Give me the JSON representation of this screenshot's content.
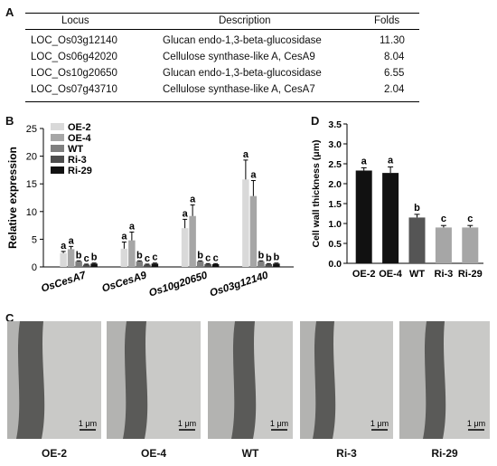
{
  "panel_a": {
    "letter": "A",
    "headers": {
      "locus": "Locus",
      "description": "Description",
      "folds": "Folds"
    },
    "rows": [
      {
        "locus": "LOC_Os03g12140",
        "description": "Glucan endo-1,3-beta-glucosidase",
        "folds": "11.30"
      },
      {
        "locus": "LOC_Os06g42020",
        "description": "Cellulose synthase-like A, CesA9",
        "folds": "8.04"
      },
      {
        "locus": "LOC_Os10g20650",
        "description": "Glucan endo-1,3-beta-glucosidase",
        "folds": "6.55"
      },
      {
        "locus": "LOC_Os07g43710",
        "description": "Cellulose synthase-like A, CesA7",
        "folds": "2.04"
      }
    ]
  },
  "panel_b": {
    "letter": "B",
    "chart_data": {
      "type": "bar",
      "ylabel": "Relative expression",
      "ylim": [
        0,
        25
      ],
      "yticks": [
        0,
        5,
        10,
        15,
        20,
        25
      ],
      "categories": [
        "OsCesA7",
        "OsCesA9",
        "Os10g20650",
        "Os03g12140"
      ],
      "series": [
        {
          "name": "OE-2",
          "color": "#d9d9d9",
          "values": [
            2.5,
            3.3,
            7.0,
            15.8
          ],
          "errors": [
            0.3,
            1.2,
            1.6,
            3.5
          ],
          "letters": [
            "a",
            "a",
            "a",
            "a"
          ]
        },
        {
          "name": "OE-4",
          "color": "#a6a6a6",
          "values": [
            3.2,
            4.8,
            9.2,
            12.8
          ],
          "errors": [
            0.5,
            1.5,
            2.0,
            2.8
          ],
          "letters": [
            "a",
            "a",
            "a",
            "a"
          ]
        },
        {
          "name": "WT",
          "color": "#7f7f7f",
          "values": [
            1.0,
            1.0,
            1.0,
            1.0
          ],
          "errors": [
            0.1,
            0.1,
            0.1,
            0.1
          ],
          "letters": [
            "b",
            "b",
            "b",
            "b"
          ]
        },
        {
          "name": "Ri-3",
          "color": "#4d4d4d",
          "values": [
            0.4,
            0.4,
            0.5,
            0.5
          ],
          "errors": [
            0.1,
            0.1,
            0.1,
            0.1
          ],
          "letters": [
            "c",
            "c",
            "c",
            "b"
          ]
        },
        {
          "name": "Ri-29",
          "color": "#111111",
          "values": [
            0.6,
            0.6,
            0.5,
            0.6
          ],
          "errors": [
            0.1,
            0.1,
            0.1,
            0.1
          ],
          "letters": [
            "b",
            "c",
            "c",
            "b"
          ]
        }
      ]
    }
  },
  "panel_d": {
    "letter": "D",
    "chart_data": {
      "type": "bar",
      "ylabel": "Cell wall thickness (μm)",
      "ylim": [
        0,
        3.5
      ],
      "yticks": [
        0,
        0.5,
        1,
        1.5,
        2,
        2.5,
        3,
        3.5
      ],
      "ytick_labels": [
        "0.0",
        "0.5",
        "1.0",
        "1.5",
        "2.0",
        "2.5",
        "3.0",
        "3.5"
      ],
      "categories": [
        "OE-2",
        "OE-4",
        "WT",
        "Ri-3",
        "Ri-29"
      ],
      "values": [
        2.33,
        2.27,
        1.15,
        0.9,
        0.9
      ],
      "errors": [
        0.07,
        0.15,
        0.08,
        0.05,
        0.05
      ],
      "colors": [
        "#111111",
        "#111111",
        "#555555",
        "#a6a6a6",
        "#a6a6a6"
      ],
      "letters": [
        "a",
        "a",
        "b",
        "c",
        "c"
      ]
    }
  },
  "panel_c": {
    "letter": "C",
    "images": [
      {
        "label": "OE-2",
        "scale": "1 μm"
      },
      {
        "label": "OE-4",
        "scale": "1 μm"
      },
      {
        "label": "WT",
        "scale": "1 μm"
      },
      {
        "label": "Ri-3",
        "scale": "1 μm"
      },
      {
        "label": "Ri-29",
        "scale": "1 μm"
      }
    ]
  }
}
